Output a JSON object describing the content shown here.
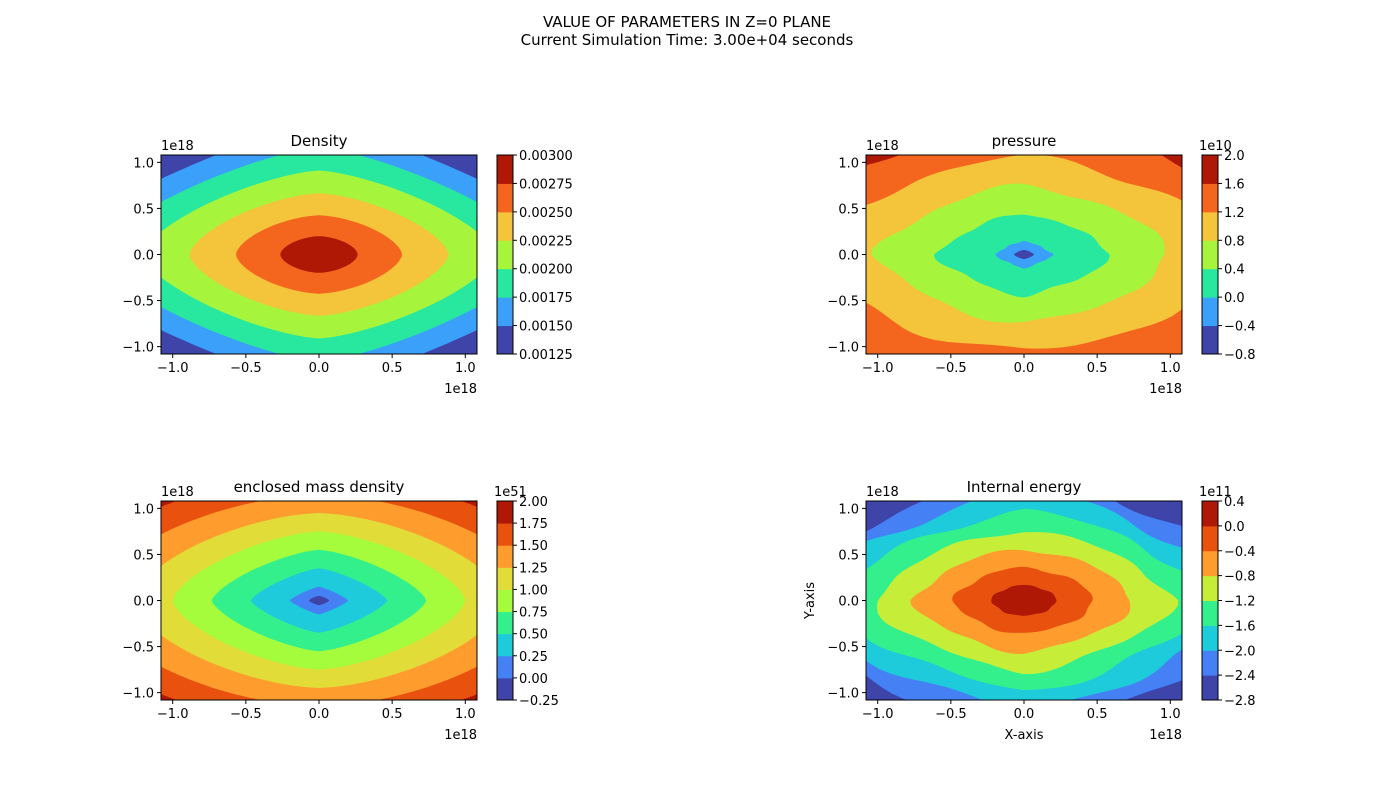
{
  "figure": {
    "title_line1": "VALUE OF PARAMETERS IN Z=0 PLANE",
    "title_line2": "Current Simulation Time: 3.00e+04 seconds"
  },
  "chart_data": [
    {
      "type": "heatmap",
      "title": "Density",
      "xlabel": "",
      "ylabel": "",
      "xlim": [
        -1.08,
        1.08
      ],
      "ylim": [
        -1.08,
        1.08
      ],
      "x_scale_label": "1e18",
      "y_scale_label": "1e18",
      "xticks": [
        -1.0,
        -0.5,
        0.0,
        0.5,
        1.0
      ],
      "xtick_labels": [
        "−1.0",
        "−0.5",
        "0.0",
        "0.5",
        "1.0"
      ],
      "yticks": [
        -1.0,
        -0.5,
        0.0,
        0.5,
        1.0
      ],
      "ytick_labels": [
        "−1.0",
        "−0.5",
        "0.0",
        "0.5",
        "1.0"
      ],
      "pattern": "center_peak",
      "colorbar": {
        "levels": [
          0.00125,
          0.0015,
          0.00175,
          0.002,
          0.00225,
          0.0025,
          0.00275,
          0.003
        ],
        "tick_labels": [
          "0.00125",
          "0.00150",
          "0.00175",
          "0.00200",
          "0.00225",
          "0.00250",
          "0.00275",
          "0.00300"
        ],
        "offset_label": "",
        "colors": [
          "#3e44a8",
          "#3aa0fa",
          "#28e8a0",
          "#a6f53c",
          "#f4c43a",
          "#f4651e",
          "#b01806"
        ]
      }
    },
    {
      "type": "heatmap",
      "title": "pressure",
      "xlabel": "",
      "ylabel": "",
      "xlim": [
        -1.08,
        1.08
      ],
      "ylim": [
        -1.08,
        1.08
      ],
      "x_scale_label": "1e18",
      "y_scale_label": "1e18",
      "xticks": [
        -1.0,
        -0.5,
        0.0,
        0.5,
        1.0
      ],
      "xtick_labels": [
        "−1.0",
        "−0.5",
        "0.0",
        "0.5",
        "1.0"
      ],
      "yticks": [
        -1.0,
        -0.5,
        0.0,
        0.5,
        1.0
      ],
      "ytick_labels": [
        "−1.0",
        "−0.5",
        "0.0",
        "0.5",
        "1.0"
      ],
      "pattern": "center_low",
      "colorbar": {
        "levels": [
          -0.8,
          -0.4,
          0.0,
          0.4,
          0.8,
          1.2,
          1.6,
          2.0
        ],
        "tick_labels": [
          "−0.8",
          "−0.4",
          "0.0",
          "0.4",
          "0.8",
          "1.2",
          "1.6",
          "2.0"
        ],
        "offset_label": "1e10",
        "colors": [
          "#3e44a8",
          "#3aa0fa",
          "#28e8a0",
          "#a6f53c",
          "#f4c43a",
          "#f4651e",
          "#b01806"
        ]
      }
    },
    {
      "type": "heatmap",
      "title": "enclosed mass density",
      "xlabel": "",
      "ylabel": "",
      "xlim": [
        -1.08,
        1.08
      ],
      "ylim": [
        -1.08,
        1.08
      ],
      "x_scale_label": "1e18",
      "y_scale_label": "1e18",
      "xticks": [
        -1.0,
        -0.5,
        0.0,
        0.5,
        1.0
      ],
      "xtick_labels": [
        "−1.0",
        "−0.5",
        "0.0",
        "0.5",
        "1.0"
      ],
      "yticks": [
        -1.0,
        -0.5,
        0.0,
        0.5,
        1.0
      ],
      "ytick_labels": [
        "−1.0",
        "−0.5",
        "0.0",
        "0.5",
        "1.0"
      ],
      "pattern": "center_low",
      "colorbar": {
        "levels": [
          -0.25,
          0.0,
          0.25,
          0.5,
          0.75,
          1.0,
          1.25,
          1.5,
          1.75,
          2.0
        ],
        "tick_labels": [
          "−0.25",
          "0.00",
          "0.25",
          "0.50",
          "0.75",
          "1.00",
          "1.25",
          "1.50",
          "1.75",
          "2.00"
        ],
        "offset_label": "1e51",
        "colors": [
          "#3e44a8",
          "#4580f5",
          "#1ecbda",
          "#34f08c",
          "#a4fc3c",
          "#e2dc38",
          "#fe9c2d",
          "#e8520e",
          "#b01806"
        ]
      }
    },
    {
      "type": "heatmap",
      "title": "Internal energy",
      "xlabel": "X-axis",
      "ylabel": "Y-axis",
      "xlim": [
        -1.08,
        1.08
      ],
      "ylim": [
        -1.08,
        1.08
      ],
      "x_scale_label": "1e18",
      "y_scale_label": "1e18",
      "xticks": [
        -1.0,
        -0.5,
        0.0,
        0.5,
        1.0
      ],
      "xtick_labels": [
        "−1.0",
        "−0.5",
        "0.0",
        "0.5",
        "1.0"
      ],
      "yticks": [
        -1.0,
        -0.5,
        0.0,
        0.5,
        1.0
      ],
      "ytick_labels": [
        "−1.0",
        "−0.5",
        "0.0",
        "0.5",
        "1.0"
      ],
      "pattern": "center_peak",
      "colorbar": {
        "levels": [
          -2.8,
          -2.4,
          -2.0,
          -1.6,
          -1.2,
          -0.8,
          -0.4,
          0.0,
          0.4
        ],
        "tick_labels": [
          "−2.8",
          "−2.4",
          "−2.0",
          "−1.6",
          "−1.2",
          "−0.8",
          "−0.4",
          "0.0",
          "0.4"
        ],
        "offset_label": "1e11",
        "colors": [
          "#3e44a8",
          "#4580f5",
          "#1ecbda",
          "#34f08c",
          "#c6ee38",
          "#fe9c2d",
          "#e8520e",
          "#b01806"
        ]
      }
    }
  ]
}
